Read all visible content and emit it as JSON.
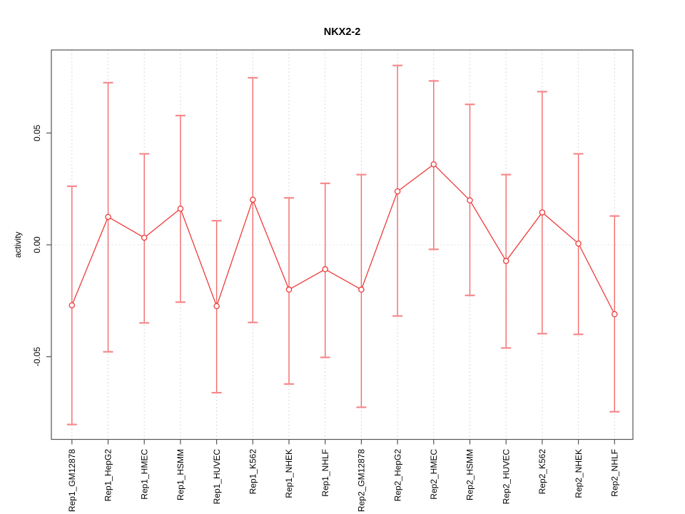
{
  "chart_data": {
    "type": "scatter",
    "subtype": "errorbar",
    "title": "NKX2-2",
    "xlabel": "",
    "ylabel": "activity",
    "legend": "none",
    "grid": "vertical-dashed-per-category, dotted-zero-line",
    "ylim": [
      -0.087,
      0.087
    ],
    "y_axis": {
      "ticks": [
        {
          "value": 0.05,
          "label": "0.05"
        },
        {
          "value": 0.0,
          "label": "0.00"
        },
        {
          "value": -0.05,
          "label": "-0.05"
        }
      ]
    },
    "categories": [
      "Rep1_GM12878",
      "Rep1_HepG2",
      "Rep1_HMEC",
      "Rep1_HSMM",
      "Rep1_HUVEC",
      "Rep1_K562",
      "Rep1_NHEK",
      "Rep1_NHLF",
      "Rep2_GM12878",
      "Rep2_HepG2",
      "Rep2_HMEC",
      "Rep2_HSMM",
      "Rep2_HUVEC",
      "Rep2_K562",
      "Rep2_NHEK",
      "Rep2_NHLF"
    ],
    "series": [
      {
        "name": "activity",
        "marker": "open-circle",
        "values": [
          -0.027,
          0.0125,
          0.0032,
          0.0162,
          -0.0274,
          0.0202,
          -0.02,
          -0.0109,
          -0.02,
          0.0239,
          0.036,
          0.0199,
          -0.0072,
          0.0145,
          0.0006,
          -0.031
        ],
        "lower": [
          -0.0803,
          -0.0478,
          -0.0349,
          -0.0256,
          -0.0661,
          -0.0347,
          -0.0622,
          -0.0503,
          -0.0726,
          -0.0318,
          -0.002,
          -0.0226,
          -0.0461,
          -0.0397,
          -0.04,
          -0.0746
        ],
        "upper": [
          0.0262,
          0.0725,
          0.0407,
          0.0578,
          0.0108,
          0.0747,
          0.021,
          0.0275,
          0.0314,
          0.0802,
          0.0733,
          0.0628,
          0.0314,
          0.0685,
          0.0407,
          0.0129
        ]
      }
    ]
  },
  "colors": {
    "series_red": "#ee3b3b",
    "errorbar_red": "#f26a6a",
    "cap_red": "#f6898c",
    "marker_fill": "#ffffff",
    "gridline_grey": "#d9d9d9",
    "axis_grey": "#555555",
    "text_black": "#000000"
  }
}
